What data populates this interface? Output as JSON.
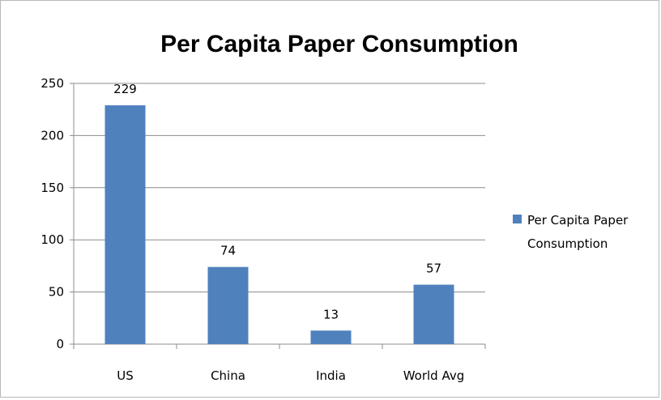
{
  "chart_data": {
    "type": "bar",
    "title": "Per Capita Paper Consumption",
    "categories": [
      "US",
      "China",
      "India",
      "World Avg"
    ],
    "series": [
      {
        "name": "Per Capita Paper Consumption",
        "values": [
          229,
          74,
          13,
          57
        ],
        "color": "#4f81bd"
      }
    ],
    "data_labels": [
      "229",
      "74",
      "13",
      "57"
    ],
    "ylim": [
      0,
      250
    ],
    "yticks": [
      0,
      50,
      100,
      150,
      200,
      250
    ],
    "ytick_labels": [
      "0",
      "50",
      "100",
      "150",
      "200",
      "250"
    ],
    "grid": true,
    "legend_position": "right",
    "legend_lines": [
      "Per Capita Paper",
      "Consumption"
    ],
    "xlabel": "",
    "ylabel": ""
  }
}
